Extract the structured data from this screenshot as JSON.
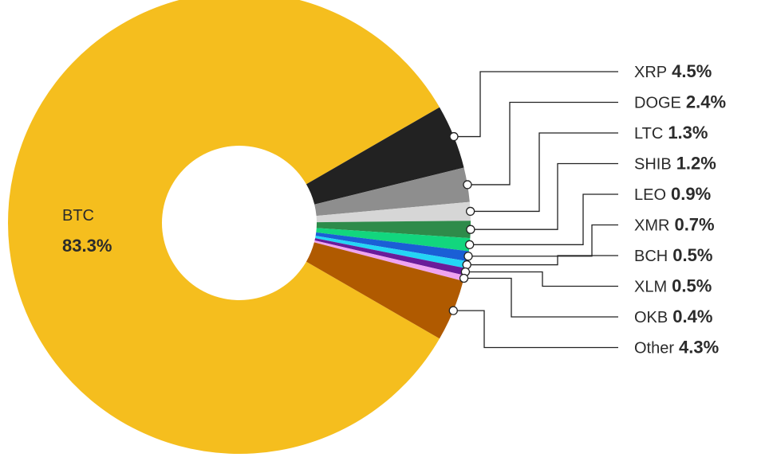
{
  "chart_data": {
    "type": "pie",
    "variant": "donut",
    "title": "",
    "legend": "none",
    "slices": [
      {
        "label": "BTC",
        "value_label": "83.3%",
        "value": 83.3,
        "color": "#F5BE1E"
      },
      {
        "label": "XRP",
        "value_label": "4.5%",
        "value": 4.5,
        "color": "#222222"
      },
      {
        "label": "DOGE",
        "value_label": "2.4%",
        "value": 2.4,
        "color": "#8E8E8E"
      },
      {
        "label": "LTC",
        "value_label": "1.3%",
        "value": 1.3,
        "color": "#D6D6D6"
      },
      {
        "label": "SHIB",
        "value_label": "1.2%",
        "value": 1.2,
        "color": "#2E8B4A"
      },
      {
        "label": "LEO",
        "value_label": "0.9%",
        "value": 0.9,
        "color": "#12D67E"
      },
      {
        "label": "XMR",
        "value_label": "0.7%",
        "value": 0.7,
        "color": "#1A5FD6"
      },
      {
        "label": "BCH",
        "value_label": "0.5%",
        "value": 0.5,
        "color": "#24D5F5"
      },
      {
        "label": "XLM",
        "value_label": "0.5%",
        "value": 0.5,
        "color": "#6A1B9A"
      },
      {
        "label": "OKB",
        "value_label": "0.4%",
        "value": 0.4,
        "color": "#EFA3F1"
      },
      {
        "label": "Other",
        "value_label": "4.3%",
        "value": 4.3,
        "color": "#B05A00"
      }
    ]
  }
}
